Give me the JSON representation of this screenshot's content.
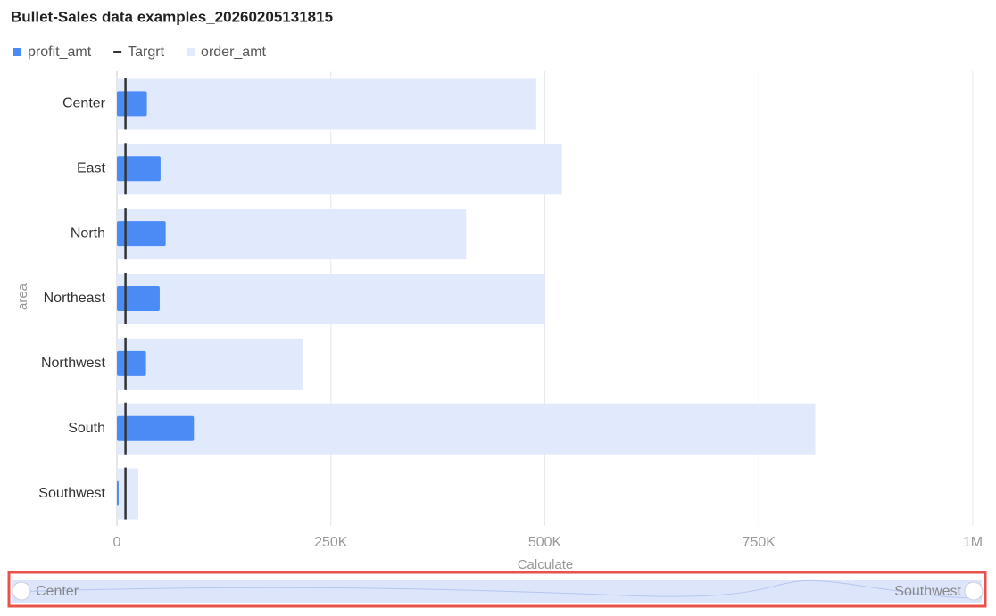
{
  "chart_data": {
    "type": "bullet",
    "title": "Bullet-Sales data examples_20260205131815",
    "x_label": "Calculate",
    "y_label": "area",
    "categories": [
      "Center",
      "East",
      "North",
      "Northeast",
      "Northwest",
      "South",
      "Southwest"
    ],
    "series": [
      {
        "name": "profit_amt",
        "color": "#4b8bf5",
        "values": [
          35000,
          51000,
          57000,
          50000,
          34000,
          90000,
          2000
        ]
      },
      {
        "name": "Targrt",
        "color": "#333333",
        "values": [
          10000,
          10000,
          10000,
          10000,
          10000,
          10000,
          10000
        ]
      },
      {
        "name": "order_amt",
        "color": "#e1eafd",
        "values": [
          490000,
          520000,
          408000,
          500000,
          218000,
          816000,
          25000
        ]
      }
    ],
    "xlim": [
      0,
      1000000
    ],
    "xticks": [
      0,
      {
        "value": 250000,
        "label": "250K"
      },
      {
        "value": 500000,
        "label": "500K"
      },
      {
        "value": 750000,
        "label": "750K"
      },
      {
        "value": 1000000,
        "label": "1M"
      }
    ],
    "grid": true
  }
}
